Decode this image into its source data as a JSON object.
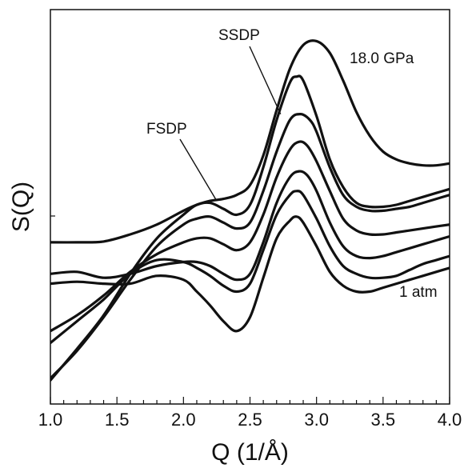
{
  "chart_data": {
    "type": "line",
    "title": "",
    "xlabel": "Q (1/Å)",
    "ylabel": "S(Q)",
    "xlim": [
      1.0,
      4.0
    ],
    "ylim": [
      0,
      1
    ],
    "x_ticks": [
      "1.0",
      "1.5",
      "2.0",
      "2.5",
      "3.0",
      "3.5",
      "4.0"
    ],
    "y_ticks": [],
    "grid": false,
    "legend": "none",
    "line_color": "#111111",
    "annotations": [
      {
        "text": "SSDP",
        "target": [
          2.73,
          0.735
        ]
      },
      {
        "text": "FSDP",
        "target": [
          2.25,
          0.515
        ]
      },
      {
        "text": "18.0 GPa"
      },
      {
        "text": "1 atm"
      }
    ],
    "series": [
      {
        "x": [
          1.0,
          1.2,
          1.4,
          1.6,
          1.8,
          2.0,
          2.1,
          2.2,
          2.3,
          2.4,
          2.5,
          2.6,
          2.7,
          2.8,
          2.9,
          3.0,
          3.1,
          3.2,
          3.3,
          3.4,
          3.5,
          3.6,
          3.7,
          3.8,
          3.9,
          4.0
        ],
        "y": [
          0.41,
          0.41,
          0.412,
          0.43,
          0.455,
          0.49,
          0.505,
          0.515,
          0.52,
          0.53,
          0.555,
          0.63,
          0.745,
          0.85,
          0.91,
          0.92,
          0.89,
          0.82,
          0.74,
          0.68,
          0.64,
          0.62,
          0.61,
          0.605,
          0.605,
          0.61
        ]
      },
      {
        "x": [
          1.0,
          1.2,
          1.4,
          1.6,
          1.8,
          2.0,
          2.1,
          2.2,
          2.3,
          2.4,
          2.5,
          2.6,
          2.7,
          2.8,
          2.85,
          2.9,
          3.0,
          3.1,
          3.2,
          3.3,
          3.4,
          3.5,
          3.6,
          3.7,
          3.8,
          3.9,
          4.0
        ],
        "y": [
          0.06,
          0.14,
          0.225,
          0.33,
          0.42,
          0.48,
          0.505,
          0.51,
          0.495,
          0.48,
          0.505,
          0.6,
          0.72,
          0.815,
          0.83,
          0.82,
          0.73,
          0.62,
          0.55,
          0.51,
          0.5,
          0.5,
          0.505,
          0.515,
          0.525,
          0.535,
          0.545
        ]
      },
      {
        "x": [
          1.0,
          1.2,
          1.4,
          1.6,
          1.8,
          2.0,
          2.1,
          2.2,
          2.3,
          2.4,
          2.5,
          2.6,
          2.7,
          2.8,
          2.88,
          2.95,
          3.0,
          3.1,
          3.2,
          3.3,
          3.4,
          3.5,
          3.6,
          3.7,
          3.8,
          3.9,
          4.0
        ],
        "y": [
          0.065,
          0.135,
          0.22,
          0.315,
          0.4,
          0.455,
          0.47,
          0.475,
          0.46,
          0.445,
          0.46,
          0.54,
          0.64,
          0.72,
          0.735,
          0.72,
          0.69,
          0.6,
          0.53,
          0.5,
          0.49,
          0.49,
          0.495,
          0.5,
          0.51,
          0.52,
          0.53
        ]
      },
      {
        "x": [
          1.0,
          1.2,
          1.4,
          1.6,
          1.8,
          2.0,
          2.1,
          2.2,
          2.3,
          2.4,
          2.5,
          2.6,
          2.7,
          2.8,
          2.87,
          2.93,
          3.0,
          3.1,
          3.2,
          3.3,
          3.4,
          3.5,
          3.6,
          3.7,
          3.8,
          3.9,
          4.0
        ],
        "y": [
          0.185,
          0.225,
          0.275,
          0.335,
          0.38,
          0.41,
          0.42,
          0.42,
          0.405,
          0.39,
          0.41,
          0.48,
          0.575,
          0.645,
          0.665,
          0.655,
          0.615,
          0.54,
          0.47,
          0.44,
          0.43,
          0.43,
          0.435,
          0.44,
          0.445,
          0.45,
          0.455
        ]
      },
      {
        "x": [
          1.0,
          1.2,
          1.4,
          1.6,
          1.8,
          2.0,
          2.1,
          2.2,
          2.3,
          2.4,
          2.5,
          2.6,
          2.7,
          2.8,
          2.87,
          2.93,
          3.0,
          3.1,
          3.2,
          3.3,
          3.4,
          3.5,
          3.6,
          3.7,
          3.8,
          3.9,
          4.0
        ],
        "y": [
          0.33,
          0.335,
          0.32,
          0.33,
          0.35,
          0.36,
          0.36,
          0.35,
          0.33,
          0.315,
          0.33,
          0.41,
          0.51,
          0.575,
          0.59,
          0.58,
          0.54,
          0.46,
          0.4,
          0.375,
          0.37,
          0.375,
          0.385,
          0.395,
          0.405,
          0.415,
          0.425
        ]
      },
      {
        "x": [
          1.0,
          1.2,
          1.4,
          1.6,
          1.8,
          2.0,
          2.1,
          2.2,
          2.3,
          2.4,
          2.5,
          2.6,
          2.7,
          2.8,
          2.85,
          2.9,
          3.0,
          3.1,
          3.2,
          3.3,
          3.4,
          3.5,
          3.6,
          3.7,
          3.8,
          3.9,
          4.0
        ],
        "y": [
          0.155,
          0.21,
          0.265,
          0.33,
          0.365,
          0.36,
          0.345,
          0.325,
          0.3,
          0.285,
          0.305,
          0.39,
          0.48,
          0.53,
          0.54,
          0.53,
          0.47,
          0.4,
          0.35,
          0.33,
          0.32,
          0.32,
          0.325,
          0.34,
          0.355,
          0.365,
          0.375
        ]
      },
      {
        "x": [
          1.0,
          1.2,
          1.4,
          1.6,
          1.8,
          2.0,
          2.1,
          2.2,
          2.3,
          2.4,
          2.5,
          2.6,
          2.7,
          2.8,
          2.85,
          2.9,
          3.0,
          3.1,
          3.2,
          3.3,
          3.4,
          3.5,
          3.6,
          3.7,
          3.8,
          3.9,
          4.0
        ],
        "y": [
          0.305,
          0.31,
          0.305,
          0.305,
          0.325,
          0.315,
          0.285,
          0.25,
          0.21,
          0.185,
          0.22,
          0.32,
          0.42,
          0.465,
          0.475,
          0.46,
          0.4,
          0.335,
          0.3,
          0.285,
          0.285,
          0.295,
          0.305,
          0.315,
          0.325,
          0.335,
          0.345
        ]
      }
    ]
  }
}
